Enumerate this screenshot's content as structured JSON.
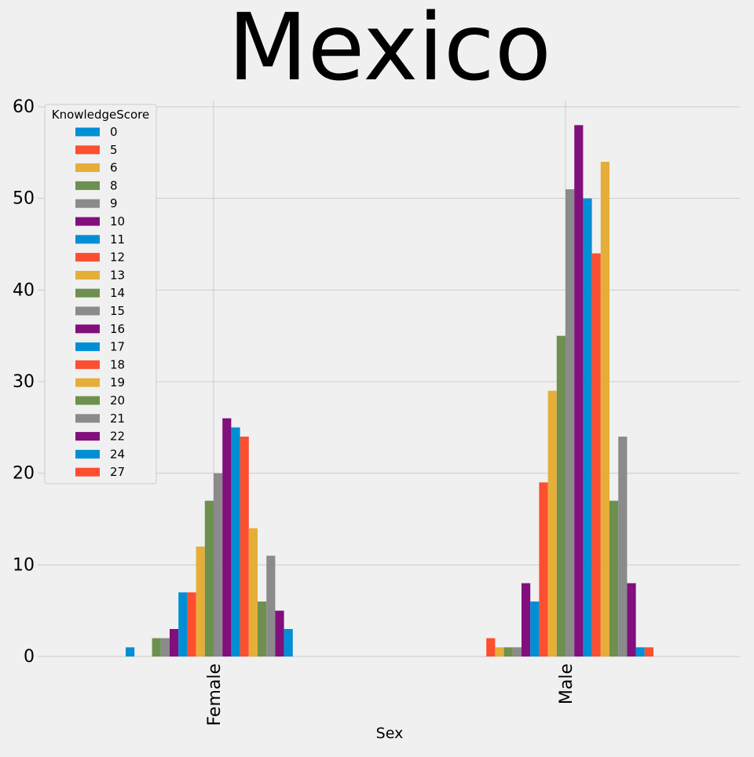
{
  "chart_data": {
    "type": "bar",
    "title": "Mexico",
    "xlabel": "Sex",
    "ylabel": "",
    "ylim": [
      0,
      60
    ],
    "yticks": [
      0,
      10,
      20,
      30,
      40,
      50,
      60
    ],
    "grid": true,
    "legend_title": "KnowledgeScore",
    "legend_position": "top-left",
    "categories": [
      "Female",
      "Male"
    ],
    "series": [
      {
        "name": "0",
        "color": "#008fd5",
        "values": [
          1,
          0
        ]
      },
      {
        "name": "5",
        "color": "#fc4f30",
        "values": [
          0,
          2
        ]
      },
      {
        "name": "6",
        "color": "#e5ae38",
        "values": [
          0,
          1
        ]
      },
      {
        "name": "8",
        "color": "#6d904f",
        "values": [
          2,
          1
        ]
      },
      {
        "name": "9",
        "color": "#8b8b8b",
        "values": [
          2,
          1
        ]
      },
      {
        "name": "10",
        "color": "#810f7c",
        "values": [
          3,
          8
        ]
      },
      {
        "name": "11",
        "color": "#008fd5",
        "values": [
          7,
          6
        ]
      },
      {
        "name": "12",
        "color": "#fc4f30",
        "values": [
          7,
          19
        ]
      },
      {
        "name": "13",
        "color": "#e5ae38",
        "values": [
          12,
          29
        ]
      },
      {
        "name": "14",
        "color": "#6d904f",
        "values": [
          17,
          35
        ]
      },
      {
        "name": "15",
        "color": "#8b8b8b",
        "values": [
          20,
          51
        ]
      },
      {
        "name": "16",
        "color": "#810f7c",
        "values": [
          26,
          58
        ]
      },
      {
        "name": "17",
        "color": "#008fd5",
        "values": [
          25,
          50
        ]
      },
      {
        "name": "18",
        "color": "#fc4f30",
        "values": [
          24,
          44
        ]
      },
      {
        "name": "19",
        "color": "#e5ae38",
        "values": [
          14,
          54
        ]
      },
      {
        "name": "20",
        "color": "#6d904f",
        "values": [
          6,
          17
        ]
      },
      {
        "name": "21",
        "color": "#8b8b8b",
        "values": [
          11,
          24
        ]
      },
      {
        "name": "22",
        "color": "#810f7c",
        "values": [
          5,
          8
        ]
      },
      {
        "name": "24",
        "color": "#008fd5",
        "values": [
          3,
          1
        ]
      },
      {
        "name": "27",
        "color": "#fc4f30",
        "values": [
          0,
          1
        ]
      }
    ]
  }
}
